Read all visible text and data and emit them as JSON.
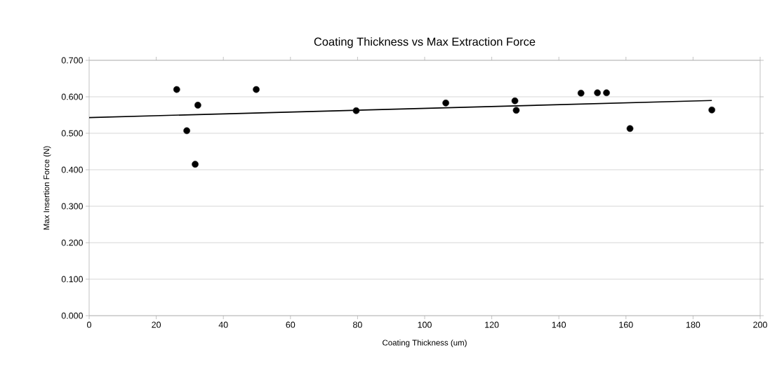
{
  "chart_data": {
    "type": "scatter",
    "title": "Coating Thickness vs Max Extraction Force",
    "xlabel": "Coating Thickness (um)",
    "ylabel": "Max Insertion Force (N)",
    "series": [
      {
        "color": "#000000",
        "marker": "circle",
        "x": [
          26.1,
          29.1,
          31.6,
          32.4,
          49.8,
          79.6,
          106.3,
          126.9,
          127.3,
          146.6,
          151.5,
          154.2,
          161.2,
          185.6
        ],
        "values": [
          0.62,
          0.507,
          0.415,
          0.577,
          0.62,
          0.562,
          0.583,
          0.589,
          0.563,
          0.61,
          0.611,
          0.611,
          0.513,
          0.564
        ]
      },
      {
        "type": "line",
        "color": "#000000",
        "marker": "none",
        "line_style": "solid",
        "x": [
          0,
          185.6
        ],
        "values": [
          0.543,
          0.59
        ]
      }
    ],
    "xlim": [
      0,
      200
    ],
    "xticks": [
      0,
      20,
      40,
      60,
      80,
      100,
      120,
      140,
      160,
      180,
      200
    ],
    "ylim": [
      0,
      0.7
    ],
    "yticks": [
      {
        "value": 0,
        "label": "0.000"
      },
      {
        "value": 0.1,
        "label": "0.100"
      },
      {
        "value": 0.2,
        "label": "0.200"
      },
      {
        "value": 0.3,
        "label": "0.300"
      },
      {
        "value": 0.4,
        "label": "0.400"
      },
      {
        "value": 0.5,
        "label": "0.500"
      },
      {
        "value": 0.6,
        "label": "0.600"
      },
      {
        "value": 0.7,
        "label": "0.700"
      }
    ],
    "grid": "y"
  }
}
